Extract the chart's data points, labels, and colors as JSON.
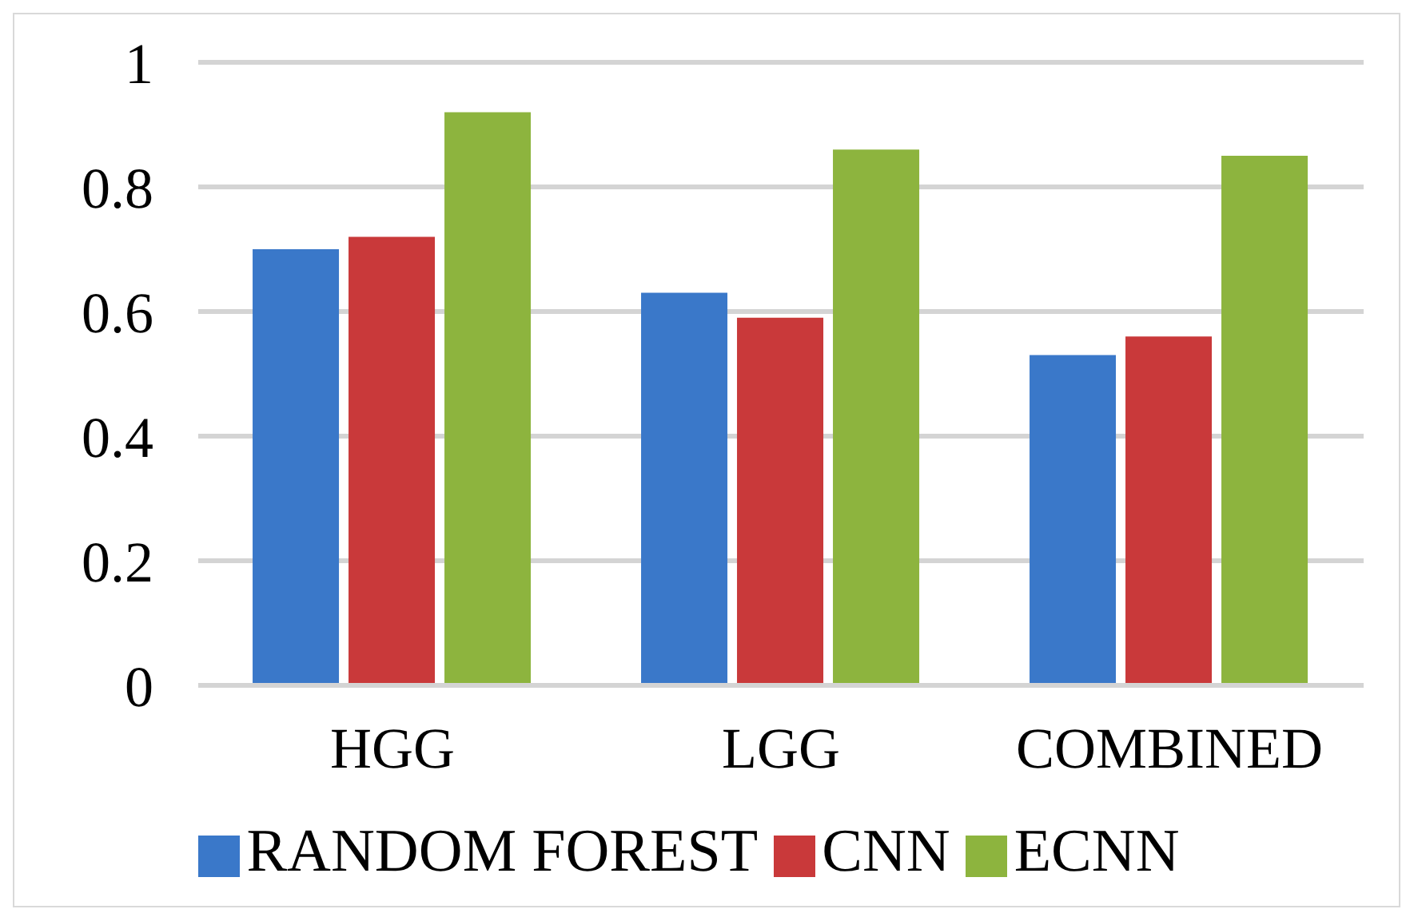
{
  "chart_data": {
    "type": "bar",
    "categories": [
      "HGG",
      "LGG",
      "COMBINED"
    ],
    "series": [
      {
        "name": "RANDOM FOREST",
        "color": "#3a78c9",
        "values": [
          0.7,
          0.63,
          0.53
        ]
      },
      {
        "name": "CNN",
        "color": "#c9393a",
        "values": [
          0.72,
          0.59,
          0.56
        ]
      },
      {
        "name": "ECNN",
        "color": "#8db43e",
        "values": [
          0.92,
          0.86,
          0.85
        ]
      }
    ],
    "ylim": [
      0,
      1
    ],
    "yticks": [
      0,
      0.2,
      0.4,
      0.6,
      0.8,
      1
    ],
    "grid": "y",
    "legend": "bottom"
  }
}
